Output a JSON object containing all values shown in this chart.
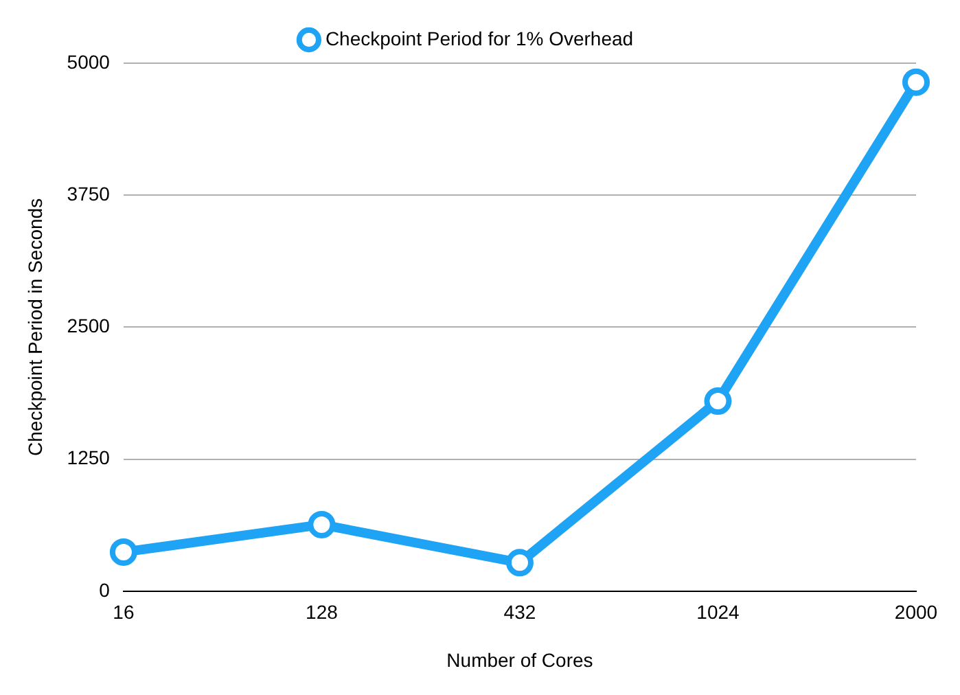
{
  "chart_data": {
    "type": "line",
    "xlabel": "Number of Cores",
    "ylabel": "Checkpoint Period in Seconds",
    "categories": [
      "16",
      "128",
      "432",
      "1024",
      "2000"
    ],
    "series": [
      {
        "name": "Checkpoint Period for 1% Overhead",
        "color": "#1fa3f5",
        "values": [
          370,
          630,
          270,
          1800,
          4820
        ]
      }
    ],
    "ylim": [
      0,
      5000
    ],
    "yticks": [
      0,
      1250,
      2500,
      3750,
      5000
    ],
    "grid": "y",
    "legend": "top",
    "marker": "circle",
    "line_style": "solid"
  }
}
